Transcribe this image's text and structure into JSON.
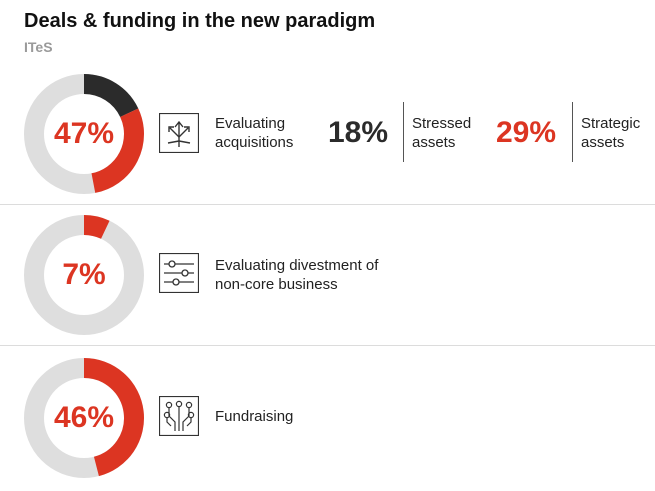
{
  "title": "Deals & funding in the new paradigm",
  "subtitle": "ITeS",
  "colors": {
    "accent": "#dc3522",
    "secondary": "#2b2b2b",
    "track": "#dedede",
    "text": "#222222"
  },
  "rows": [
    {
      "percent_label": "47%",
      "icon": "branching-arrows-icon",
      "label": "Evaluating\nacquisitions",
      "breakdown": [
        {
          "value_label": "18%",
          "label": "Stressed\nassets",
          "color": "#2b2b2b"
        },
        {
          "value_label": "29%",
          "label": "Strategic\nassets",
          "color": "#dc3522"
        }
      ]
    },
    {
      "percent_label": "7%",
      "icon": "slider-filters-icon",
      "label": "Evaluating divestment of\nnon-core business"
    },
    {
      "percent_label": "46%",
      "icon": "circuit-nodes-icon",
      "label": "Fundraising"
    }
  ],
  "chart_data": [
    {
      "type": "pie",
      "variant": "donut",
      "value": 47,
      "series": [
        {
          "name": "Stressed assets",
          "value": 18,
          "color": "#2b2b2b"
        },
        {
          "name": "Strategic assets",
          "value": 29,
          "color": "#dc3522"
        }
      ],
      "total": 100
    },
    {
      "type": "pie",
      "variant": "donut",
      "value": 7,
      "series": [
        {
          "name": "Evaluating divestment of non-core business",
          "value": 7,
          "color": "#dc3522"
        }
      ],
      "total": 100
    },
    {
      "type": "pie",
      "variant": "donut",
      "value": 46,
      "series": [
        {
          "name": "Fundraising",
          "value": 46,
          "color": "#dc3522"
        }
      ],
      "total": 100
    }
  ]
}
